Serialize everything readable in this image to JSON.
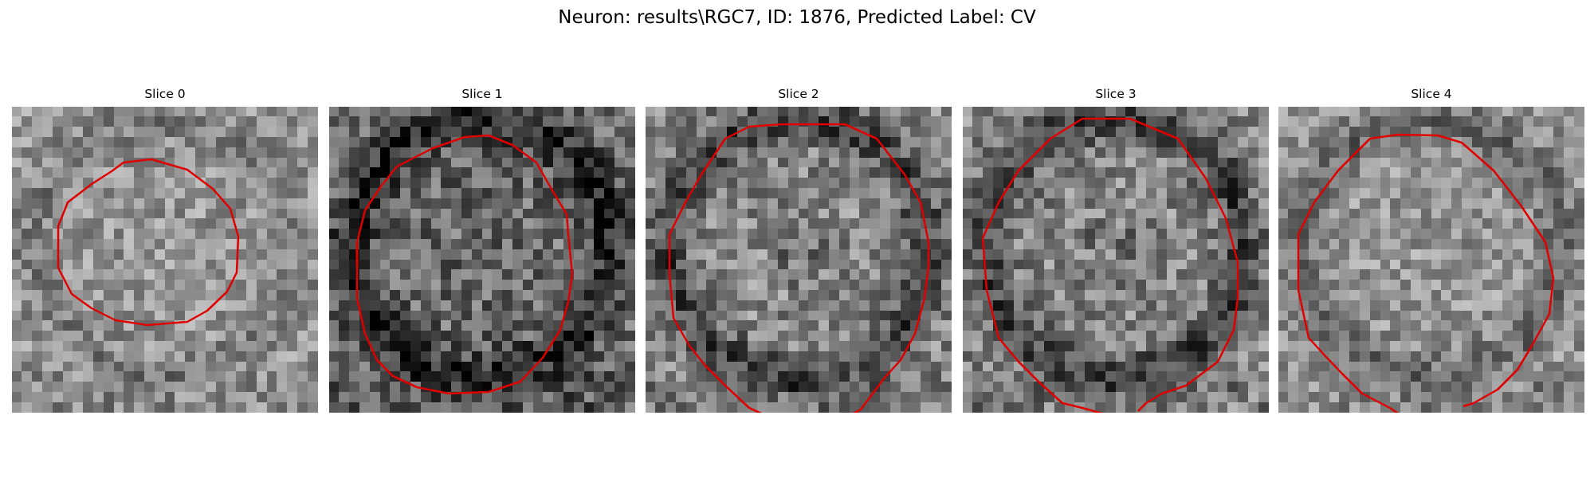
{
  "figure": {
    "title": "Neuron: results\\RGC7, ID: 1876, Predicted Label: CV"
  },
  "colors": {
    "contour": "#e00000",
    "background": "#ffffff"
  },
  "slices": [
    {
      "label": "Slice 0",
      "brightness": "light",
      "ring": "faint"
    },
    {
      "label": "Slice 1",
      "brightness": "dark",
      "ring": "strong"
    },
    {
      "label": "Slice 2",
      "brightness": "medium",
      "ring": "strong"
    },
    {
      "label": "Slice 3",
      "brightness": "medium",
      "ring": "strong"
    },
    {
      "label": "Slice 4",
      "brightness": "light",
      "ring": "medium"
    }
  ]
}
